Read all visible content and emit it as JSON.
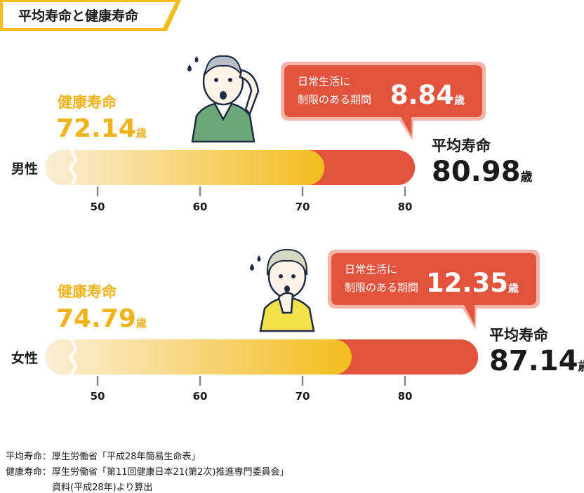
{
  "title": "平均寿命と健康寿命",
  "colors": {
    "accent_yellow": "#f2bd1d",
    "bar_red": "#e1533d",
    "bar_start": "#fbeed6",
    "bubble_border": "#f3b4a7",
    "text_dark": "#1a1a1a",
    "health_label": "#f0b31a",
    "tick": "#888888"
  },
  "labels": {
    "health_span": "健康寿命",
    "avg_life": "平均寿命",
    "years_unit": "歳",
    "limited_line1": "日常生活に",
    "limited_line2": "制限のある期間"
  },
  "chart_data": {
    "type": "bar",
    "orientation": "horizontal",
    "title": "平均寿命と健康寿命",
    "x_ticks": [
      50,
      60,
      70,
      80
    ],
    "axis_break": true,
    "unit": "歳",
    "groups": [
      {
        "category": "男性",
        "healthy_life_expectancy": 72.14,
        "healthy_label": "72.14",
        "average_life_expectancy": 80.98,
        "average_label": "80.98",
        "limited_period": 8.84,
        "limited_label": "8.84",
        "icon": "elderly-man-worried-icon"
      },
      {
        "category": "女性",
        "healthy_life_expectancy": 74.79,
        "healthy_label": "74.79",
        "average_life_expectancy": 87.14,
        "average_label": "87.14",
        "limited_period": 12.35,
        "limited_label": "12.35",
        "icon": "elderly-woman-worried-icon"
      }
    ]
  },
  "sources": [
    {
      "label": "平均寿命：",
      "text": "厚生労働省「平成28年簡易生命表」"
    },
    {
      "label": "健康寿命：",
      "text": "厚生労働省「第11回健康日本21(第2次)推進専門委員会」"
    },
    {
      "label": "",
      "text": "資料(平成28年)より算出"
    }
  ]
}
